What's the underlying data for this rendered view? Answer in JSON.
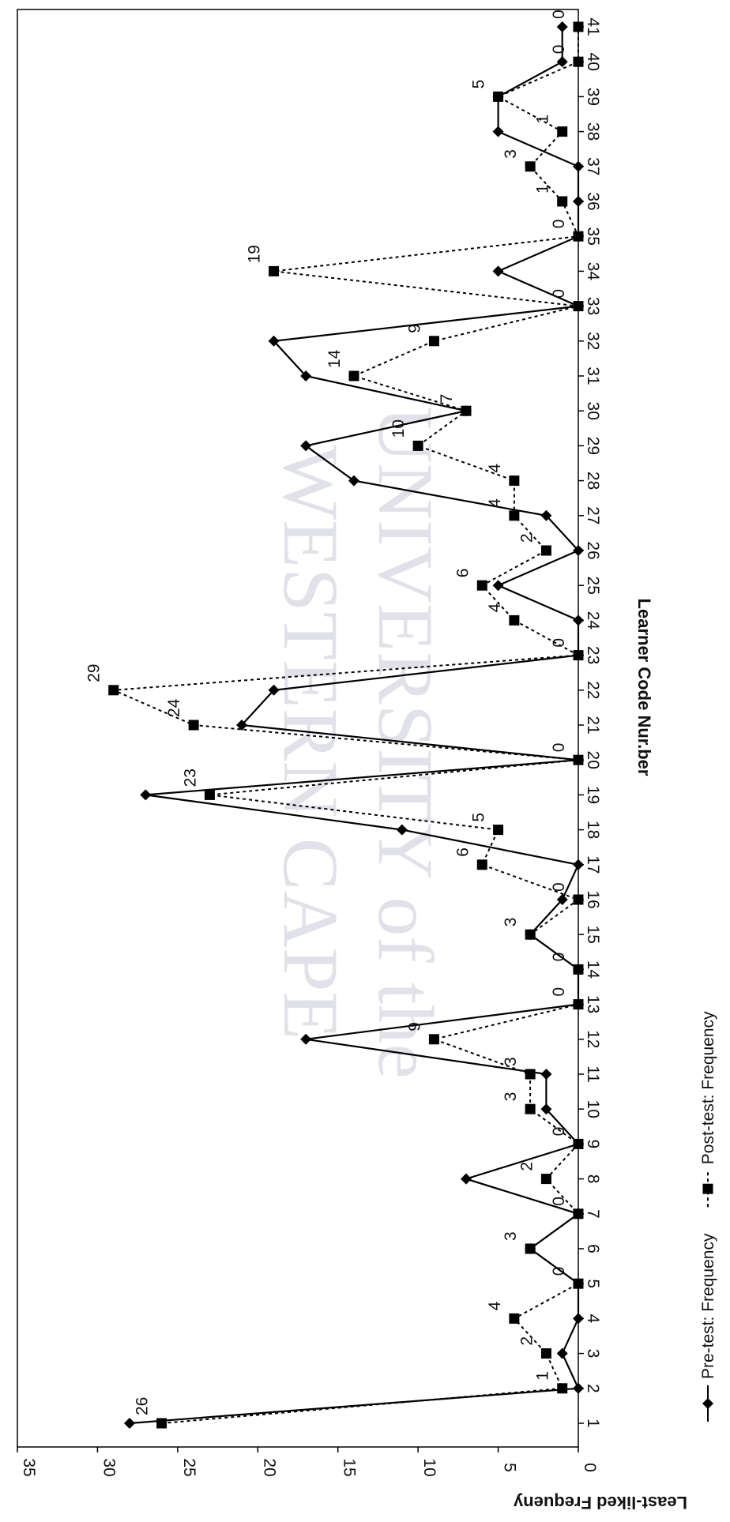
{
  "chart_data": {
    "type": "line",
    "orientation": "rotated-90-clockwise",
    "xlabel": "Learner Code Nur.ber",
    "ylabel": "Least-liked Frequeny",
    "ylim": [
      0,
      35
    ],
    "yticks": [
      0,
      5,
      10,
      15,
      20,
      25,
      30,
      35
    ],
    "xlim": [
      1,
      41
    ],
    "grid": false,
    "legend_position": "bottom",
    "x": [
      1,
      2,
      3,
      4,
      5,
      6,
      7,
      8,
      9,
      10,
      11,
      12,
      13,
      14,
      15,
      16,
      17,
      18,
      19,
      20,
      21,
      22,
      23,
      24,
      25,
      26,
      27,
      28,
      29,
      30,
      31,
      32,
      33,
      34,
      35,
      36,
      37,
      38,
      39,
      40,
      41
    ],
    "series": [
      {
        "name": "Pre-test: Frequency",
        "line": "solid",
        "marker": "diamond",
        "color": "#000000",
        "values": [
          28,
          0,
          1,
          0,
          0,
          3,
          0,
          7,
          0,
          2,
          2,
          17,
          0,
          0,
          3,
          1,
          0,
          11,
          27,
          0,
          21,
          19,
          0,
          0,
          5,
          0,
          2,
          14,
          17,
          7,
          17,
          19,
          0,
          5,
          0,
          0,
          0,
          5,
          5,
          1,
          1
        ]
      },
      {
        "name": "Post-test: Frequency",
        "line": "dashed",
        "marker": "square",
        "color": "#000000",
        "values": [
          26,
          1,
          2,
          4,
          0,
          3,
          0,
          2,
          0,
          3,
          3,
          9,
          0,
          0,
          3,
          0,
          6,
          5,
          23,
          0,
          24,
          29,
          0,
          4,
          6,
          2,
          4,
          4,
          10,
          7,
          14,
          9,
          0,
          19,
          0,
          1,
          3,
          1,
          5,
          0,
          0
        ]
      }
    ],
    "data_labels": [
      {
        "x": 1,
        "text": "26"
      },
      {
        "x": 2,
        "text": "1"
      },
      {
        "x": 3,
        "text": "2"
      },
      {
        "x": 4,
        "text": "4"
      },
      {
        "x": 5,
        "text": "0"
      },
      {
        "x": 6,
        "text": "3"
      },
      {
        "x": 7,
        "text": "0"
      },
      {
        "x": 8,
        "text": "2"
      },
      {
        "x": 9,
        "text": "0"
      },
      {
        "x": 10,
        "text": "3"
      },
      {
        "x": 11,
        "text": "3"
      },
      {
        "x": 12,
        "text": "9"
      },
      {
        "x": 13,
        "text": "0"
      },
      {
        "x": 14,
        "text": "0"
      },
      {
        "x": 15,
        "text": "3"
      },
      {
        "x": 16,
        "text": "0"
      },
      {
        "x": 17,
        "text": "6"
      },
      {
        "x": 18,
        "text": "5"
      },
      {
        "x": 19,
        "text": "23"
      },
      {
        "x": 20,
        "text": "0"
      },
      {
        "x": 21,
        "text": "24"
      },
      {
        "x": 22,
        "text": "29"
      },
      {
        "x": 23,
        "text": "0"
      },
      {
        "x": 24,
        "text": "4"
      },
      {
        "x": 25,
        "text": "6"
      },
      {
        "x": 26,
        "text": "2"
      },
      {
        "x": 27,
        "text": "4"
      },
      {
        "x": 28,
        "text": "4"
      },
      {
        "x": 29,
        "text": "10"
      },
      {
        "x": 30,
        "text": "7"
      },
      {
        "x": 31,
        "text": "14"
      },
      {
        "x": 32,
        "text": "9"
      },
      {
        "x": 33,
        "text": "0"
      },
      {
        "x": 34,
        "text": "19"
      },
      {
        "x": 35,
        "text": "0"
      },
      {
        "x": 36,
        "text": "1"
      },
      {
        "x": 37,
        "text": "3"
      },
      {
        "x": 38,
        "text": "1"
      },
      {
        "x": 39,
        "text": "5"
      },
      {
        "x": 40,
        "text": "0"
      },
      {
        "x": 41,
        "text": "0"
      }
    ]
  },
  "watermark": {
    "lines": [
      "UNIVERSITY of the",
      "WESTERN CAPE"
    ],
    "color": "#c9c9d8"
  }
}
